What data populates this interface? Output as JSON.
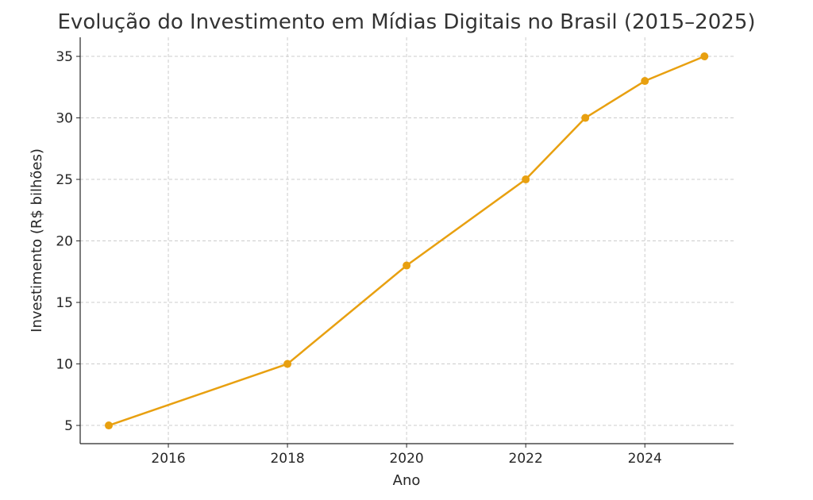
{
  "chart_data": {
    "type": "line",
    "title": "Evolução do Investimento em Mídias Digitais no Brasil (2015–2025)",
    "xlabel": "Ano",
    "ylabel": "Investimento (R$ bilhões)",
    "x": [
      2015,
      2018,
      2020,
      2022,
      2023,
      2024,
      2025
    ],
    "series": [
      {
        "name": "Investimento",
        "values": [
          5,
          10,
          18,
          25,
          30,
          33,
          35
        ],
        "color": "#E8A010"
      }
    ],
    "xlim": [
      2014.52,
      2025.49
    ],
    "ylim": [
      3.52,
      36.55
    ],
    "xticks": [
      2016,
      2018,
      2020,
      2022,
      2024
    ],
    "xtick_labels": [
      "2016",
      "2018",
      "2020",
      "2022",
      "2024"
    ],
    "yticks": [
      5,
      10,
      15,
      20,
      25,
      30,
      35
    ],
    "ytick_labels": [
      "5",
      "10",
      "15",
      "20",
      "25",
      "30",
      "35"
    ],
    "grid": true,
    "legend": "none"
  }
}
